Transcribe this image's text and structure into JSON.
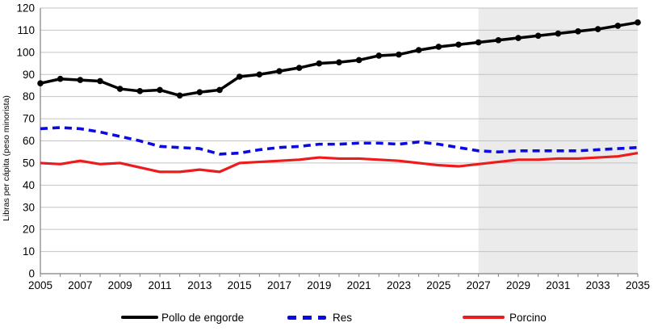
{
  "chart_data": {
    "type": "line",
    "title": "",
    "xlabel": "",
    "ylabel": "Libras per cápita (peso minorista)",
    "x_range": [
      2005,
      2035
    ],
    "x": [
      2005,
      2006,
      2007,
      2008,
      2009,
      2010,
      2011,
      2012,
      2013,
      2014,
      2015,
      2016,
      2017,
      2018,
      2019,
      2020,
      2021,
      2022,
      2023,
      2024,
      2025,
      2026,
      2027,
      2028,
      2029,
      2030,
      2031,
      2032,
      2033,
      2034,
      2035
    ],
    "x_tick_labels": [
      "2005",
      "2007",
      "2009",
      "2011",
      "2013",
      "2015",
      "2017",
      "2019",
      "2021",
      "2023",
      "2025",
      "2027",
      "2029",
      "2031",
      "2033",
      "2035"
    ],
    "ylim": [
      0,
      120
    ],
    "y_ticks": [
      0,
      10,
      20,
      30,
      40,
      50,
      60,
      70,
      80,
      90,
      100,
      110,
      120
    ],
    "grid": "horizontal",
    "legend_position": "bottom",
    "forecast_region": {
      "start_year": 2027,
      "end_year": 2035,
      "fill": "#ebebeb"
    },
    "axis_color": "#7f7f7f",
    "grid_color": "#c3c3c3",
    "series": [
      {
        "name": "Pollo de engorde",
        "color": "#000000",
        "style": "solid",
        "marker": "circle",
        "stroke_width": 3.5,
        "values": [
          86,
          88,
          87.5,
          87,
          83.5,
          82.5,
          83,
          80.5,
          82,
          83,
          89,
          90,
          91.5,
          93,
          95,
          95.5,
          96.5,
          98.5,
          99,
          101,
          102.5,
          103.5,
          104.5,
          105.5,
          106.5,
          107.5,
          108.5,
          109.5,
          110.5,
          112,
          113.5
        ]
      },
      {
        "name": "Res",
        "color": "#0a0ae0",
        "style": "dashed",
        "marker": "none",
        "stroke_width": 3.6,
        "values": [
          65.5,
          66,
          65.5,
          64,
          62,
          60,
          57.5,
          57,
          56.5,
          54,
          54.5,
          56,
          57,
          57.5,
          58.5,
          58.5,
          59,
          59,
          58.5,
          59.5,
          58.5,
          57,
          55.5,
          55,
          55.5,
          55.5,
          55.5,
          55.5,
          56,
          56.5,
          57
        ]
      },
      {
        "name": "Porcino",
        "color": "#ed1c1c",
        "style": "solid",
        "marker": "none",
        "stroke_width": 3.2,
        "values": [
          50,
          49.5,
          51,
          49.5,
          50,
          48,
          46,
          46,
          47,
          46,
          50,
          50.5,
          51,
          51.5,
          52.5,
          52,
          52,
          51.5,
          51,
          50,
          49,
          48.5,
          49.5,
          50.5,
          51.5,
          51.5,
          52,
          52,
          52.5,
          53,
          54.5
        ]
      }
    ]
  }
}
